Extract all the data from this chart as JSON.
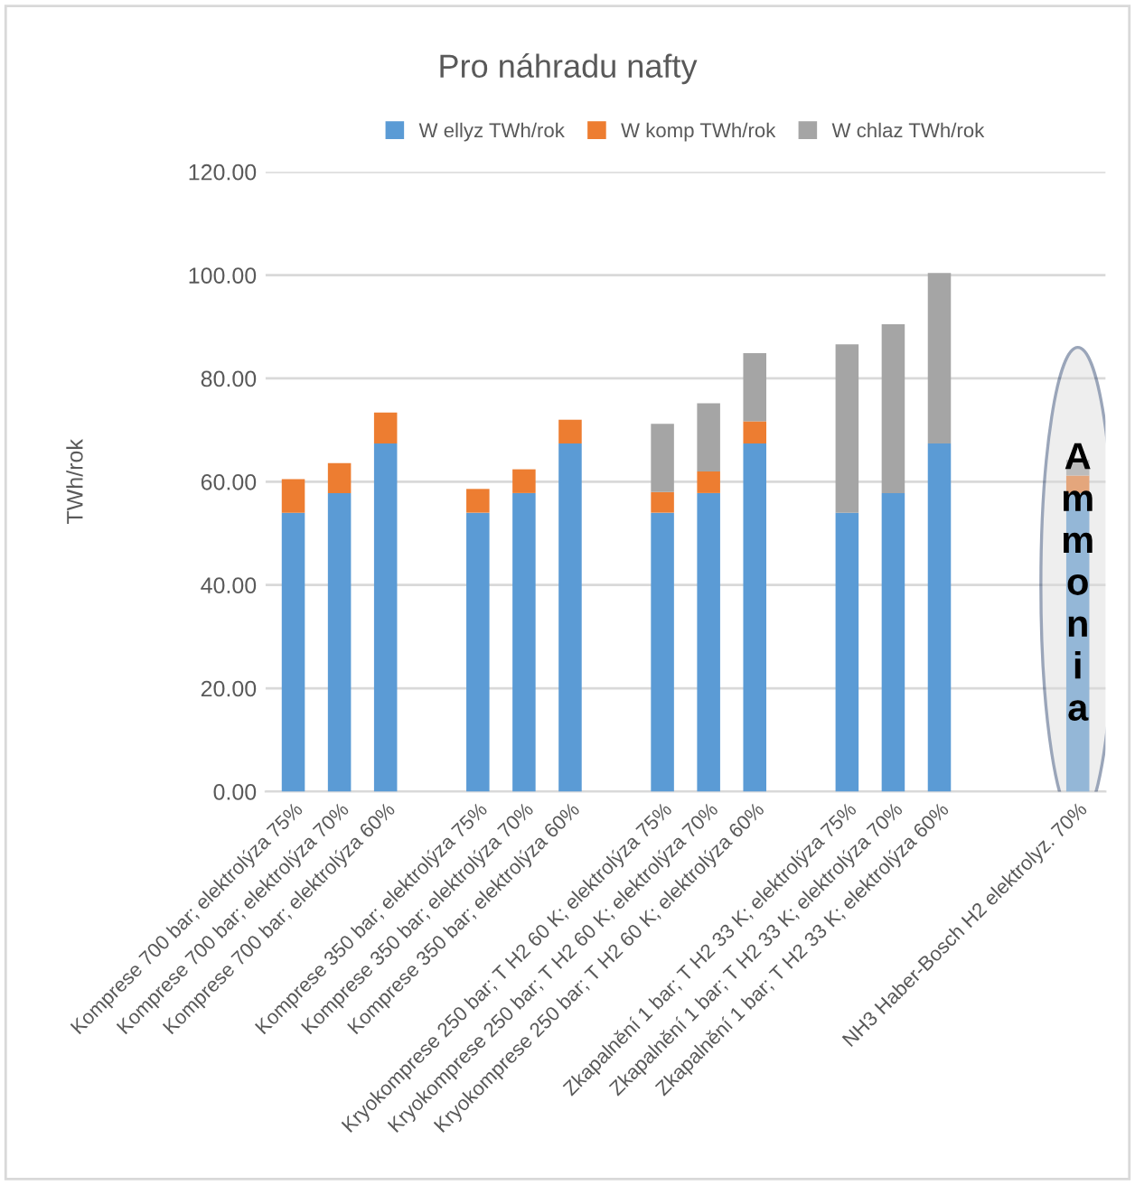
{
  "chart_data": {
    "type": "bar",
    "title": "Pro náhradu nafty",
    "ylabel": "TWh/rok",
    "stacked": true,
    "categories": [
      "Komprese 700 bar; elektrolýza 75%",
      "Komprese 700 bar; elektrolýza 70%",
      "Komprese 700 bar; elektrolýza 60%",
      null,
      "Komprese 350 bar; elektrolýza 75%",
      "Komprese 350 bar; elektrolýza 70%",
      "Komprese 350 bar; elektrolýza 60%",
      null,
      "Kryokomprese 250 bar; T H2 60 K; elektrolýza 75%",
      "Kryokomprese 250 bar; T H2 60 K; elektrolýza 70%",
      "Kryokomprese 250 bar; T H2 60 K; elektrolýza 60%",
      null,
      "Zkapalnění 1 bar; T H2 33 K; elektrolýza 75%",
      "Zkapalnění 1 bar; T H2 33 K; elektrolýza 70%",
      "Zkapalnění 1 bar; T H2 33 K; elektrolýza 60%",
      null,
      null,
      "NH3 Haber-Bosch H2 elektrolyz. 70%"
    ],
    "series": [
      {
        "name": "W ellyz TWh/rok",
        "color": "#5b9bd5",
        "values": [
          54.0,
          57.8,
          67.4,
          null,
          54.0,
          57.8,
          67.4,
          null,
          54.0,
          57.8,
          67.4,
          null,
          54.0,
          57.8,
          67.4,
          null,
          null,
          57.8
        ]
      },
      {
        "name": "W komp TWh/rok",
        "color": "#ed7d31",
        "values": [
          6.5,
          5.8,
          6.0,
          null,
          4.6,
          4.6,
          4.6,
          null,
          4.0,
          4.2,
          4.3,
          null,
          null,
          null,
          null,
          null,
          null,
          3.4
        ]
      },
      {
        "name": "W chlaz TWh/rok",
        "color": "#a5a5a5",
        "values": [
          null,
          null,
          null,
          null,
          null,
          null,
          null,
          null,
          13.2,
          13.2,
          13.2,
          null,
          32.6,
          32.7,
          33.0,
          null,
          null,
          3.0
        ]
      }
    ],
    "ylim": [
      0,
      120
    ],
    "yticks": [
      {
        "value": 0,
        "label": "0.00"
      },
      {
        "value": 20,
        "label": "20.00"
      },
      {
        "value": 40,
        "label": "40.00"
      },
      {
        "value": 60,
        "label": "60.00"
      },
      {
        "value": 80,
        "label": "80.00"
      },
      {
        "value": 100,
        "label": "100.00"
      },
      {
        "value": 120,
        "label": "120.00"
      }
    ],
    "grid": "y",
    "legend": "top",
    "annotations": [
      {
        "text": "Ammonia",
        "x": "NH3 Haber-Bosch H2 elektrolyz. 70%",
        "y": 30
      }
    ]
  }
}
